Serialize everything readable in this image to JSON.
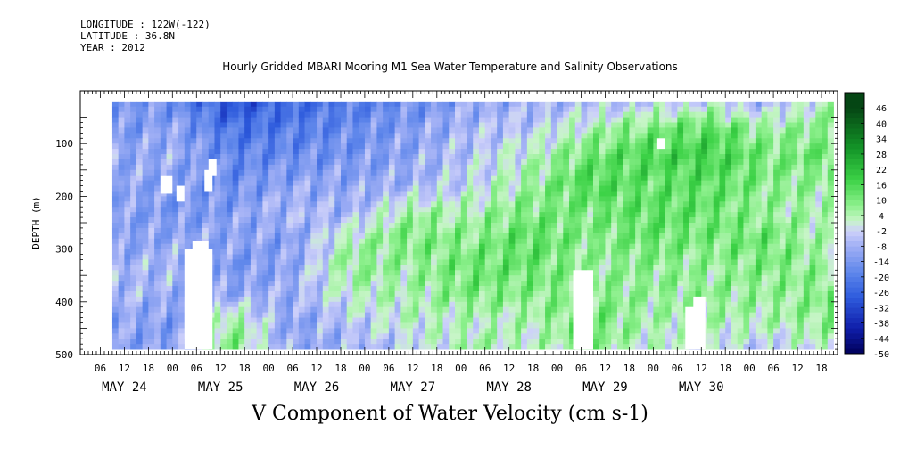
{
  "header": {
    "longitude": "LONGITUDE : 122W(-122)",
    "latitude": "LATITUDE : 36.8N",
    "year": "YEAR : 2012"
  },
  "chart_data": {
    "type": "heatmap",
    "title": "Hourly Gridded MBARI Mooring M1 Sea Water Temperature and Salinity Observations",
    "xlabel": "V Component of Water Velocity (cm s-1)",
    "ylabel": "DEPTH (m)",
    "x_unit": "hours since May 24 00:00",
    "xlim": [
      -11,
      178
    ],
    "ylim": [
      500,
      0
    ],
    "y_ticks": [
      100,
      200,
      300,
      400,
      500
    ],
    "hour_ticks": [
      {
        "h": -6,
        "label": "06"
      },
      {
        "h": 0,
        "label": "12"
      },
      {
        "h": 6,
        "label": "18"
      },
      {
        "h": 12,
        "label": "00"
      },
      {
        "h": 18,
        "label": "06"
      },
      {
        "h": 24,
        "label": "12"
      },
      {
        "h": 30,
        "label": "18"
      },
      {
        "h": 36,
        "label": "00"
      },
      {
        "h": 42,
        "label": "06"
      },
      {
        "h": 48,
        "label": "12"
      },
      {
        "h": 54,
        "label": "18"
      },
      {
        "h": 60,
        "label": "00"
      },
      {
        "h": 66,
        "label": "06"
      },
      {
        "h": 72,
        "label": "12"
      },
      {
        "h": 78,
        "label": "18"
      },
      {
        "h": 84,
        "label": "00"
      },
      {
        "h": 90,
        "label": "06"
      },
      {
        "h": 96,
        "label": "12"
      },
      {
        "h": 102,
        "label": "18"
      },
      {
        "h": 108,
        "label": "00"
      },
      {
        "h": 114,
        "label": "06"
      },
      {
        "h": 120,
        "label": "12"
      },
      {
        "h": 126,
        "label": "18"
      },
      {
        "h": 132,
        "label": "00"
      },
      {
        "h": 138,
        "label": "06"
      },
      {
        "h": 144,
        "label": "12"
      },
      {
        "h": 150,
        "label": "18"
      },
      {
        "h": 156,
        "label": "00"
      },
      {
        "h": 162,
        "label": "06"
      },
      {
        "h": 168,
        "label": "12"
      },
      {
        "h": 174,
        "label": "18"
      }
    ],
    "day_labels": [
      {
        "h": 0,
        "label": "MAY 24"
      },
      {
        "h": 24,
        "label": "MAY 25"
      },
      {
        "h": 48,
        "label": "MAY 26"
      },
      {
        "h": 72,
        "label": "MAY 27"
      },
      {
        "h": 96,
        "label": "MAY 28"
      },
      {
        "h": 120,
        "label": "MAY 29"
      },
      {
        "h": 144,
        "label": "MAY 30"
      }
    ],
    "colorbar_levels": [
      46,
      40,
      34,
      28,
      22,
      16,
      10,
      4,
      -2,
      -8,
      -14,
      -20,
      -26,
      -32,
      -38,
      -44,
      -50
    ],
    "colorbar_range": [
      -50,
      52
    ],
    "data_extent": {
      "time_start_h": -3,
      "time_end_h": 176,
      "depth_top_m": 20,
      "depth_bottom_m": 490
    },
    "profile_values_cm_s": [
      [
        -12,
        -14,
        -11,
        -9,
        -10,
        -12,
        -8,
        -6,
        -9,
        -11
      ],
      [
        -16,
        -10,
        -8,
        -12,
        -14,
        -10,
        -6,
        -9,
        -13,
        -12
      ],
      [
        -30,
        -22,
        -18,
        -16,
        -12,
        -10,
        -14,
        -10,
        8,
        10
      ],
      [
        -24,
        -20,
        -16,
        -10,
        -6,
        -12,
        -10,
        -8,
        -12,
        -10
      ],
      [
        -20,
        -16,
        -14,
        -10,
        -8,
        4,
        8,
        2,
        -4,
        -8
      ],
      [
        -16,
        -12,
        -10,
        -8,
        6,
        10,
        6,
        4,
        2,
        -4
      ],
      [
        -10,
        -6,
        -4,
        -2,
        4,
        8,
        12,
        10,
        2,
        6
      ],
      [
        -8,
        -4,
        2,
        6,
        10,
        14,
        12,
        8,
        4,
        2
      ],
      [
        -6,
        4,
        12,
        16,
        10,
        8,
        6,
        10,
        12,
        6
      ],
      [
        -4,
        10,
        16,
        12,
        14,
        12,
        8,
        6,
        4,
        2
      ],
      [
        -2,
        14,
        18,
        14,
        12,
        10,
        6,
        8,
        4,
        -2
      ],
      [
        -8,
        6,
        10,
        8,
        6,
        12,
        10,
        6,
        4,
        -4
      ],
      [
        4,
        8,
        12,
        6,
        4,
        2,
        6,
        10,
        8,
        2
      ]
    ],
    "missing_regions": [
      {
        "h0": 9,
        "h1": 12,
        "d0": 160,
        "d1": 195
      },
      {
        "h0": 13,
        "h1": 15,
        "d0": 180,
        "d1": 210
      },
      {
        "h0": 15,
        "h1": 22,
        "d0": 300,
        "d1": 490
      },
      {
        "h0": 17,
        "h1": 21,
        "d0": 285,
        "d1": 300
      },
      {
        "h0": 20,
        "h1": 22,
        "d0": 150,
        "d1": 190
      },
      {
        "h0": 21,
        "h1": 23,
        "d0": 130,
        "d1": 160
      },
      {
        "h0": 112,
        "h1": 117,
        "d0": 340,
        "d1": 490
      },
      {
        "h0": 114,
        "h1": 117,
        "d0": 390,
        "d1": 425
      },
      {
        "h0": 133,
        "h1": 135,
        "d0": 90,
        "d1": 110
      },
      {
        "h0": 140,
        "h1": 145,
        "d0": 410,
        "d1": 490
      },
      {
        "h0": 142,
        "h1": 145,
        "d0": 390,
        "d1": 420
      }
    ]
  }
}
